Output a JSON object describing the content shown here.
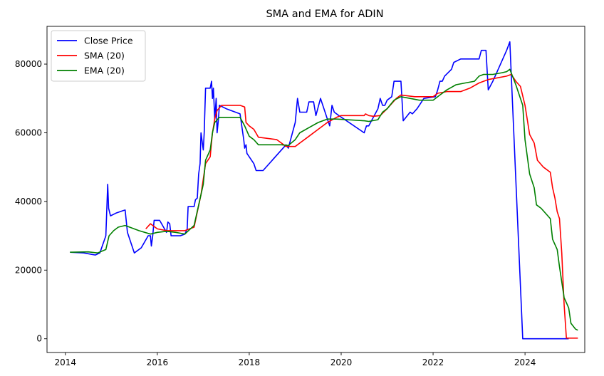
{
  "chart_data": {
    "type": "line",
    "title": "SMA and EMA for ADIN",
    "xlabel": "",
    "ylabel": "",
    "xlim": [
      2013.6,
      2025.3
    ],
    "ylim": [
      -4000,
      91000
    ],
    "x_ticks": [
      2014,
      2016,
      2018,
      2020,
      2022,
      2024
    ],
    "x_tick_labels": [
      "2014",
      "2016",
      "2018",
      "2020",
      "2022",
      "2024"
    ],
    "y_ticks": [
      0,
      20000,
      40000,
      60000,
      80000
    ],
    "y_tick_labels": [
      "0",
      "20000",
      "40000",
      "60000",
      "80000"
    ],
    "grid": false,
    "legend_position": "top-left",
    "series": [
      {
        "name": "Close Price",
        "color": "#0000ff",
        "points": [
          [
            2014.1,
            25200
          ],
          [
            2014.4,
            25000
          ],
          [
            2014.65,
            24400
          ],
          [
            2014.75,
            25000
          ],
          [
            2014.88,
            30000
          ],
          [
            2014.92,
            45000
          ],
          [
            2014.94,
            38000
          ],
          [
            2014.98,
            35800
          ],
          [
            2015.1,
            36600
          ],
          [
            2015.25,
            37300
          ],
          [
            2015.3,
            37500
          ],
          [
            2015.35,
            31000
          ],
          [
            2015.5,
            25000
          ],
          [
            2015.65,
            26500
          ],
          [
            2015.8,
            30000
          ],
          [
            2015.85,
            30000
          ],
          [
            2015.87,
            27000
          ],
          [
            2015.9,
            30000
          ],
          [
            2015.93,
            34500
          ],
          [
            2016.05,
            34500
          ],
          [
            2016.2,
            31000
          ],
          [
            2016.23,
            34000
          ],
          [
            2016.27,
            33500
          ],
          [
            2016.3,
            30000
          ],
          [
            2016.5,
            30000
          ],
          [
            2016.6,
            30500
          ],
          [
            2016.65,
            32000
          ],
          [
            2016.67,
            38500
          ],
          [
            2016.8,
            38500
          ],
          [
            2016.83,
            40500
          ],
          [
            2016.87,
            41000
          ],
          [
            2016.9,
            48000
          ],
          [
            2016.93,
            51000
          ],
          [
            2016.95,
            60000
          ],
          [
            2017.0,
            55000
          ],
          [
            2017.02,
            60000
          ],
          [
            2017.05,
            73000
          ],
          [
            2017.15,
            73000
          ],
          [
            2017.18,
            75000
          ],
          [
            2017.2,
            70000
          ],
          [
            2017.22,
            73000
          ],
          [
            2017.25,
            64000
          ],
          [
            2017.28,
            70000
          ],
          [
            2017.3,
            60000
          ],
          [
            2017.33,
            64000
          ],
          [
            2017.35,
            68000
          ],
          [
            2017.5,
            67000
          ],
          [
            2017.8,
            65500
          ],
          [
            2017.88,
            58000
          ],
          [
            2017.9,
            55500
          ],
          [
            2017.93,
            56500
          ],
          [
            2017.95,
            54000
          ],
          [
            2018.1,
            51000
          ],
          [
            2018.15,
            49000
          ],
          [
            2018.3,
            49000
          ],
          [
            2018.8,
            56500
          ],
          [
            2018.85,
            55500
          ],
          [
            2018.9,
            58000
          ],
          [
            2019.0,
            63000
          ],
          [
            2019.05,
            70000
          ],
          [
            2019.1,
            66000
          ],
          [
            2019.25,
            66000
          ],
          [
            2019.3,
            69000
          ],
          [
            2019.4,
            69000
          ],
          [
            2019.45,
            65000
          ],
          [
            2019.55,
            70000
          ],
          [
            2019.65,
            66000
          ],
          [
            2019.7,
            64000
          ],
          [
            2019.75,
            62000
          ],
          [
            2019.8,
            68000
          ],
          [
            2019.85,
            66000
          ],
          [
            2019.95,
            65000
          ],
          [
            2020.5,
            60000
          ],
          [
            2020.55,
            62000
          ],
          [
            2020.6,
            62000
          ],
          [
            2020.8,
            67000
          ],
          [
            2020.85,
            70000
          ],
          [
            2020.9,
            68000
          ],
          [
            2020.95,
            68000
          ],
          [
            2021.0,
            69500
          ],
          [
            2021.1,
            70500
          ],
          [
            2021.15,
            75000
          ],
          [
            2021.3,
            75000
          ],
          [
            2021.35,
            63500
          ],
          [
            2021.5,
            66000
          ],
          [
            2021.55,
            65500
          ],
          [
            2021.65,
            67000
          ],
          [
            2021.75,
            69000
          ],
          [
            2021.8,
            70000
          ],
          [
            2022.05,
            70500
          ],
          [
            2022.1,
            72500
          ],
          [
            2022.15,
            75000
          ],
          [
            2022.2,
            75000
          ],
          [
            2022.25,
            76500
          ],
          [
            2022.4,
            78500
          ],
          [
            2022.45,
            80500
          ],
          [
            2022.6,
            81500
          ],
          [
            2022.9,
            81500
          ],
          [
            2023.0,
            81500
          ],
          [
            2023.05,
            84000
          ],
          [
            2023.15,
            84000
          ],
          [
            2023.2,
            72500
          ],
          [
            2023.3,
            75000
          ],
          [
            2023.4,
            78000
          ],
          [
            2023.6,
            84000
          ],
          [
            2023.67,
            86500
          ],
          [
            2023.95,
            0
          ],
          [
            2024.95,
            0
          ]
        ]
      },
      {
        "name": "SMA (20)",
        "color": "#ff0000",
        "points": [
          [
            2015.75,
            32000
          ],
          [
            2015.85,
            33500
          ],
          [
            2016.0,
            32000
          ],
          [
            2016.2,
            31500
          ],
          [
            2016.4,
            31500
          ],
          [
            2016.6,
            31500
          ],
          [
            2016.8,
            32500
          ],
          [
            2016.95,
            42000
          ],
          [
            2017.05,
            51000
          ],
          [
            2017.15,
            53000
          ],
          [
            2017.2,
            60000
          ],
          [
            2017.25,
            64000
          ],
          [
            2017.3,
            66500
          ],
          [
            2017.4,
            68000
          ],
          [
            2017.8,
            68000
          ],
          [
            2017.9,
            67500
          ],
          [
            2017.93,
            63000
          ],
          [
            2018.0,
            62000
          ],
          [
            2018.1,
            61000
          ],
          [
            2018.2,
            58700
          ],
          [
            2018.6,
            58000
          ],
          [
            2018.7,
            57000
          ],
          [
            2018.8,
            56000
          ],
          [
            2019.0,
            56000
          ],
          [
            2019.1,
            57000
          ],
          [
            2019.3,
            59000
          ],
          [
            2019.5,
            61000
          ],
          [
            2019.7,
            63000
          ],
          [
            2019.9,
            64500
          ],
          [
            2020.0,
            65000
          ],
          [
            2020.5,
            65000
          ],
          [
            2020.53,
            65500
          ],
          [
            2020.6,
            65000
          ],
          [
            2020.7,
            64800
          ],
          [
            2020.85,
            65000
          ],
          [
            2021.0,
            67000
          ],
          [
            2021.2,
            70000
          ],
          [
            2021.3,
            71000
          ],
          [
            2021.6,
            70500
          ],
          [
            2022.0,
            70500
          ],
          [
            2022.1,
            71500
          ],
          [
            2022.3,
            72000
          ],
          [
            2022.6,
            72000
          ],
          [
            2022.8,
            73000
          ],
          [
            2023.0,
            74500
          ],
          [
            2023.2,
            75500
          ],
          [
            2023.4,
            76000
          ],
          [
            2023.6,
            76500
          ],
          [
            2023.7,
            77000
          ],
          [
            2023.8,
            75000
          ],
          [
            2023.9,
            73500
          ],
          [
            2024.0,
            68000
          ],
          [
            2024.1,
            59500
          ],
          [
            2024.2,
            57000
          ],
          [
            2024.27,
            52000
          ],
          [
            2024.4,
            50000
          ],
          [
            2024.55,
            48500
          ],
          [
            2024.6,
            44000
          ],
          [
            2024.65,
            41000
          ],
          [
            2024.7,
            37000
          ],
          [
            2024.75,
            35000
          ],
          [
            2024.8,
            25000
          ],
          [
            2024.85,
            10000
          ],
          [
            2024.9,
            200
          ],
          [
            2025.15,
            200
          ]
        ]
      },
      {
        "name": "EMA (20)",
        "color": "#008000",
        "points": [
          [
            2014.1,
            25200
          ],
          [
            2014.5,
            25300
          ],
          [
            2014.7,
            25000
          ],
          [
            2014.88,
            26000
          ],
          [
            2014.95,
            30000
          ],
          [
            2015.05,
            31500
          ],
          [
            2015.15,
            32500
          ],
          [
            2015.3,
            33000
          ],
          [
            2015.6,
            31500
          ],
          [
            2015.85,
            30500
          ],
          [
            2016.0,
            31000
          ],
          [
            2016.2,
            31300
          ],
          [
            2016.4,
            31000
          ],
          [
            2016.6,
            30500
          ],
          [
            2016.8,
            33000
          ],
          [
            2016.95,
            42000
          ],
          [
            2017.0,
            45000
          ],
          [
            2017.05,
            52000
          ],
          [
            2017.15,
            55000
          ],
          [
            2017.2,
            60000
          ],
          [
            2017.25,
            63000
          ],
          [
            2017.35,
            64500
          ],
          [
            2017.8,
            64500
          ],
          [
            2017.9,
            62000
          ],
          [
            2018.0,
            59000
          ],
          [
            2018.1,
            58000
          ],
          [
            2018.2,
            56500
          ],
          [
            2018.7,
            56500
          ],
          [
            2018.85,
            56300
          ],
          [
            2019.0,
            58000
          ],
          [
            2019.1,
            60000
          ],
          [
            2019.3,
            61500
          ],
          [
            2019.5,
            63000
          ],
          [
            2019.7,
            64000
          ],
          [
            2019.9,
            64000
          ],
          [
            2020.5,
            63500
          ],
          [
            2020.6,
            63300
          ],
          [
            2020.8,
            63800
          ],
          [
            2020.9,
            66000
          ],
          [
            2021.0,
            67000
          ],
          [
            2021.15,
            69500
          ],
          [
            2021.3,
            70500
          ],
          [
            2021.5,
            70000
          ],
          [
            2021.7,
            69500
          ],
          [
            2022.0,
            69500
          ],
          [
            2022.15,
            71000
          ],
          [
            2022.3,
            72500
          ],
          [
            2022.5,
            74000
          ],
          [
            2022.7,
            74500
          ],
          [
            2022.9,
            75000
          ],
          [
            2023.0,
            76500
          ],
          [
            2023.1,
            77000
          ],
          [
            2023.3,
            77000
          ],
          [
            2023.5,
            77500
          ],
          [
            2023.6,
            77800
          ],
          [
            2023.67,
            78500
          ],
          [
            2023.8,
            74000
          ],
          [
            2023.95,
            68000
          ],
          [
            2024.0,
            58000
          ],
          [
            2024.1,
            48000
          ],
          [
            2024.2,
            44000
          ],
          [
            2024.25,
            39000
          ],
          [
            2024.35,
            38000
          ],
          [
            2024.55,
            35000
          ],
          [
            2024.6,
            29000
          ],
          [
            2024.7,
            26000
          ],
          [
            2024.75,
            21000
          ],
          [
            2024.85,
            12000
          ],
          [
            2024.95,
            9000
          ],
          [
            2025.0,
            4500
          ],
          [
            2025.1,
            2800
          ],
          [
            2025.15,
            2500
          ]
        ]
      }
    ]
  }
}
